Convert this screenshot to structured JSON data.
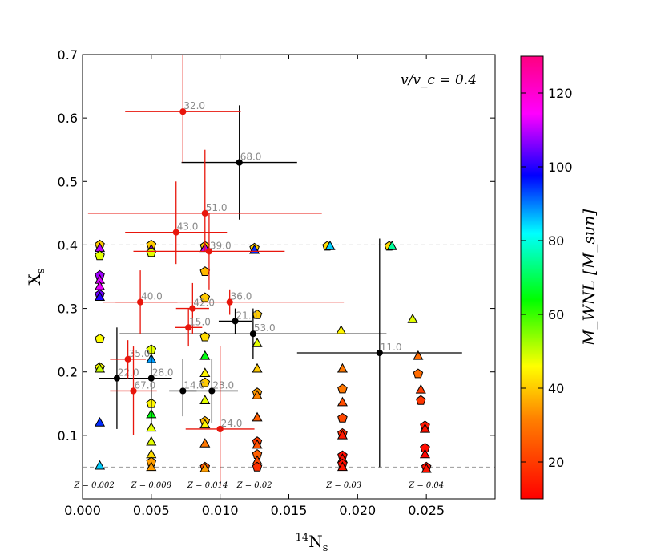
{
  "chart_data": {
    "type": "scatter",
    "title": "",
    "xlabel_base": "N",
    "xlabel_sup": "14",
    "xlabel_sub": "s",
    "ylabel_base": "X",
    "ylabel_sub": "s",
    "xlim": [
      0.0,
      0.03
    ],
    "ylim": [
      0.0,
      0.7
    ],
    "xticks": [
      "0.000",
      "0.005",
      "0.010",
      "0.015",
      "0.020",
      "0.025"
    ],
    "xtick_values": [
      0.0,
      0.005,
      0.01,
      0.015,
      0.02,
      0.025
    ],
    "yticks": [
      "0.1",
      "0.2",
      "0.3",
      "0.4",
      "0.5",
      "0.6",
      "0.7"
    ],
    "ytick_values": [
      0.1,
      0.2,
      0.3,
      0.4,
      0.5,
      0.6,
      0.7
    ],
    "annotation": "v/v_c = 0.4",
    "reference_lines_y": [
      0.05,
      0.4
    ],
    "colorbar": {
      "label": "M_WNL [M_sun]",
      "range": [
        10,
        130
      ],
      "ticks": [
        "20",
        "40",
        "60",
        "80",
        "100",
        "120"
      ],
      "tick_values": [
        20,
        40,
        60,
        80,
        100,
        120
      ]
    },
    "metallicity_labels": [
      {
        "text": "Z = 0.002",
        "x": 0.00085
      },
      {
        "text": "Z = 0.008",
        "x": 0.005
      },
      {
        "text": "Z = 0.014",
        "x": 0.0091
      },
      {
        "text": "Z = 0.02",
        "x": 0.0125
      },
      {
        "text": "Z = 0.03",
        "x": 0.019
      },
      {
        "text": "Z = 0.04",
        "x": 0.025
      }
    ],
    "observed_red": [
      {
        "label": "32.0",
        "x": 0.0073,
        "y": 0.61,
        "xerr": 0.0042,
        "yerr_lo": 0.08,
        "yerr_hi": 0.09
      },
      {
        "label": "51.0",
        "x": 0.0089,
        "y": 0.45,
        "xerr": 0.0085,
        "yerr_lo": 0.06,
        "yerr_hi": 0.1
      },
      {
        "label": "43.0",
        "x": 0.0068,
        "y": 0.42,
        "xerr": 0.0037,
        "yerr_lo": 0.05,
        "yerr_hi": 0.08
      },
      {
        "label": "39.0",
        "x": 0.0092,
        "y": 0.39,
        "xerr": 0.0055,
        "yerr_lo": 0.06,
        "yerr_hi": 0.06
      },
      {
        "label": "40.0",
        "x": 0.0042,
        "y": 0.31,
        "xerr": 0.0027,
        "yerr_lo": 0.05,
        "yerr_hi": 0.05
      },
      {
        "label": "36.0",
        "x": 0.0107,
        "y": 0.31,
        "xerr": 0.0083,
        "yerr_lo": 0.02,
        "yerr_hi": 0.02
      },
      {
        "label": "42.0",
        "x": 0.008,
        "y": 0.3,
        "xerr": 0.0012,
        "yerr_lo": 0.04,
        "yerr_hi": 0.04
      },
      {
        "label": "15.0",
        "x": 0.0077,
        "y": 0.27,
        "xerr": 0.001,
        "yerr_lo": 0.03,
        "yerr_hi": 0.03
      },
      {
        "label": "35.0",
        "x": 0.0033,
        "y": 0.22,
        "xerr": 0.0013,
        "yerr_lo": 0.03,
        "yerr_hi": 0.03
      },
      {
        "label": "67.0",
        "x": 0.0037,
        "y": 0.17,
        "xerr": 0.0017,
        "yerr_lo": 0.07,
        "yerr_hi": 0.07
      },
      {
        "label": "24.0",
        "x": 0.01,
        "y": 0.11,
        "xerr": 0.0025,
        "yerr_lo": 0.09,
        "yerr_hi": 0.13
      }
    ],
    "observed_black": [
      {
        "label": "68.0",
        "x": 0.0114,
        "y": 0.53,
        "xerr": 0.0042,
        "yerr_lo": 0.09,
        "yerr_hi": 0.09
      },
      {
        "label": "21.0",
        "x": 0.0111,
        "y": 0.28,
        "xerr": 0.0012,
        "yerr_lo": 0.02,
        "yerr_hi": 0.02
      },
      {
        "label": "53.0",
        "x": 0.0124,
        "y": 0.26,
        "xerr": 0.0097,
        "yerr_lo": 0.04,
        "yerr_hi": 0.04
      },
      {
        "label": "11.0",
        "x": 0.0216,
        "y": 0.23,
        "xerr": 0.006,
        "yerr_lo": 0.18,
        "yerr_hi": 0.18
      },
      {
        "label": "22.0",
        "x": 0.0025,
        "y": 0.19,
        "xerr": 0.0013,
        "yerr_lo": 0.08,
        "yerr_hi": 0.08
      },
      {
        "label": "28.0",
        "x": 0.005,
        "y": 0.19,
        "xerr": 0.0015,
        "yerr_lo": 0.07,
        "yerr_hi": 0.05
      },
      {
        "label": "14.0",
        "x": 0.0073,
        "y": 0.17,
        "xerr": 0.001,
        "yerr_lo": 0.04,
        "yerr_hi": 0.05
      },
      {
        "label": "23.0",
        "x": 0.0094,
        "y": 0.17,
        "xerr": 0.0019,
        "yerr_lo": 0.05,
        "yerr_hi": 0.05
      }
    ],
    "model_points": [
      {
        "x": 0.00125,
        "y": 0.4,
        "m": 40,
        "s": "pentagon"
      },
      {
        "x": 0.00125,
        "y": 0.395,
        "m": 110,
        "s": "triangle"
      },
      {
        "x": 0.00125,
        "y": 0.383,
        "m": 48,
        "s": "pentagon"
      },
      {
        "x": 0.00125,
        "y": 0.352,
        "m": 108,
        "s": "pentagon"
      },
      {
        "x": 0.00125,
        "y": 0.345,
        "m": 112,
        "s": "triangle"
      },
      {
        "x": 0.00125,
        "y": 0.335,
        "m": 113,
        "s": "triangle"
      },
      {
        "x": 0.00125,
        "y": 0.322,
        "m": 105,
        "s": "pentagon"
      },
      {
        "x": 0.00125,
        "y": 0.318,
        "m": 100,
        "s": "triangle"
      },
      {
        "x": 0.00125,
        "y": 0.252,
        "m": 46,
        "s": "pentagon"
      },
      {
        "x": 0.00125,
        "y": 0.207,
        "m": 46,
        "s": "pentagon"
      },
      {
        "x": 0.00125,
        "y": 0.205,
        "m": 50,
        "s": "triangle"
      },
      {
        "x": 0.00125,
        "y": 0.12,
        "m": 95,
        "s": "triangle"
      },
      {
        "x": 0.00125,
        "y": 0.052,
        "m": 85,
        "s": "triangle"
      },
      {
        "x": 0.005,
        "y": 0.4,
        "m": 40,
        "s": "pentagon"
      },
      {
        "x": 0.005,
        "y": 0.393,
        "m": 110,
        "s": "triangle"
      },
      {
        "x": 0.005,
        "y": 0.388,
        "m": 48,
        "s": "pentagon"
      },
      {
        "x": 0.005,
        "y": 0.235,
        "m": 48,
        "s": "pentagon"
      },
      {
        "x": 0.005,
        "y": 0.22,
        "m": 88,
        "s": "triangle"
      },
      {
        "x": 0.005,
        "y": 0.15,
        "m": 45,
        "s": "pentagon"
      },
      {
        "x": 0.005,
        "y": 0.133,
        "m": 65,
        "s": "triangle"
      },
      {
        "x": 0.005,
        "y": 0.112,
        "m": 48,
        "s": "triangle"
      },
      {
        "x": 0.005,
        "y": 0.09,
        "m": 48,
        "s": "triangle"
      },
      {
        "x": 0.005,
        "y": 0.07,
        "m": 42,
        "s": "triangle"
      },
      {
        "x": 0.005,
        "y": 0.058,
        "m": 35,
        "s": "pentagon"
      },
      {
        "x": 0.005,
        "y": 0.05,
        "m": 35,
        "s": "triangle"
      },
      {
        "x": 0.0089,
        "y": 0.398,
        "m": 40,
        "s": "pentagon"
      },
      {
        "x": 0.0089,
        "y": 0.395,
        "m": 110,
        "s": "triangle"
      },
      {
        "x": 0.0089,
        "y": 0.358,
        "m": 38,
        "s": "pentagon"
      },
      {
        "x": 0.0089,
        "y": 0.317,
        "m": 40,
        "s": "pentagon"
      },
      {
        "x": 0.0089,
        "y": 0.255,
        "m": 42,
        "s": "pentagon"
      },
      {
        "x": 0.0089,
        "y": 0.225,
        "m": 65,
        "s": "triangle"
      },
      {
        "x": 0.0089,
        "y": 0.198,
        "m": 45,
        "s": "triangle"
      },
      {
        "x": 0.0089,
        "y": 0.183,
        "m": 40,
        "s": "pentagon"
      },
      {
        "x": 0.0089,
        "y": 0.155,
        "m": 48,
        "s": "triangle"
      },
      {
        "x": 0.0089,
        "y": 0.122,
        "m": 38,
        "s": "pentagon"
      },
      {
        "x": 0.0089,
        "y": 0.117,
        "m": 45,
        "s": "triangle"
      },
      {
        "x": 0.0089,
        "y": 0.087,
        "m": 30,
        "s": "triangle"
      },
      {
        "x": 0.0089,
        "y": 0.05,
        "m": 24,
        "s": "pentagon"
      },
      {
        "x": 0.0089,
        "y": 0.048,
        "m": 35,
        "s": "triangle"
      },
      {
        "x": 0.0125,
        "y": 0.395,
        "m": 40,
        "s": "pentagon"
      },
      {
        "x": 0.0125,
        "y": 0.392,
        "m": 95,
        "s": "triangle"
      },
      {
        "x": 0.0127,
        "y": 0.29,
        "m": 40,
        "s": "pentagon"
      },
      {
        "x": 0.0127,
        "y": 0.245,
        "m": 48,
        "s": "triangle"
      },
      {
        "x": 0.0127,
        "y": 0.205,
        "m": 40,
        "s": "triangle"
      },
      {
        "x": 0.0127,
        "y": 0.167,
        "m": 35,
        "s": "pentagon"
      },
      {
        "x": 0.0127,
        "y": 0.163,
        "m": 32,
        "s": "triangle"
      },
      {
        "x": 0.0127,
        "y": 0.128,
        "m": 26,
        "s": "triangle"
      },
      {
        "x": 0.0127,
        "y": 0.09,
        "m": 20,
        "s": "pentagon"
      },
      {
        "x": 0.0127,
        "y": 0.085,
        "m": 24,
        "s": "triangle"
      },
      {
        "x": 0.0127,
        "y": 0.07,
        "m": 26,
        "s": "pentagon"
      },
      {
        "x": 0.0127,
        "y": 0.06,
        "m": 22,
        "s": "triangle"
      },
      {
        "x": 0.0127,
        "y": 0.05,
        "m": 18,
        "s": "pentagon"
      },
      {
        "x": 0.0178,
        "y": 0.398,
        "m": 42,
        "s": "pentagon"
      },
      {
        "x": 0.018,
        "y": 0.398,
        "m": 85,
        "s": "triangle"
      },
      {
        "x": 0.0188,
        "y": 0.265,
        "m": 45,
        "s": "triangle"
      },
      {
        "x": 0.0189,
        "y": 0.205,
        "m": 30,
        "s": "triangle"
      },
      {
        "x": 0.0189,
        "y": 0.173,
        "m": 30,
        "s": "pentagon"
      },
      {
        "x": 0.0189,
        "y": 0.152,
        "m": 23,
        "s": "triangle"
      },
      {
        "x": 0.0189,
        "y": 0.127,
        "m": 22,
        "s": "pentagon"
      },
      {
        "x": 0.0189,
        "y": 0.103,
        "m": 17,
        "s": "pentagon"
      },
      {
        "x": 0.0189,
        "y": 0.1,
        "m": 14,
        "s": "triangle"
      },
      {
        "x": 0.0189,
        "y": 0.068,
        "m": 12,
        "s": "pentagon"
      },
      {
        "x": 0.0189,
        "y": 0.063,
        "m": 13,
        "s": "triangle"
      },
      {
        "x": 0.0189,
        "y": 0.055,
        "m": 12,
        "s": "pentagon"
      },
      {
        "x": 0.0189,
        "y": 0.05,
        "m": 13,
        "s": "triangle"
      },
      {
        "x": 0.0223,
        "y": 0.398,
        "m": 42,
        "s": "pentagon"
      },
      {
        "x": 0.0225,
        "y": 0.398,
        "m": 75,
        "s": "triangle"
      },
      {
        "x": 0.024,
        "y": 0.283,
        "m": 48,
        "s": "triangle"
      },
      {
        "x": 0.0244,
        "y": 0.225,
        "m": 28,
        "s": "triangle"
      },
      {
        "x": 0.0244,
        "y": 0.197,
        "m": 28,
        "s": "pentagon"
      },
      {
        "x": 0.0246,
        "y": 0.172,
        "m": 20,
        "s": "triangle"
      },
      {
        "x": 0.0246,
        "y": 0.155,
        "m": 19,
        "s": "pentagon"
      },
      {
        "x": 0.0249,
        "y": 0.115,
        "m": 14,
        "s": "pentagon"
      },
      {
        "x": 0.0249,
        "y": 0.11,
        "m": 13,
        "s": "triangle"
      },
      {
        "x": 0.0249,
        "y": 0.08,
        "m": 12,
        "s": "pentagon"
      },
      {
        "x": 0.0249,
        "y": 0.07,
        "m": 11,
        "s": "triangle"
      },
      {
        "x": 0.025,
        "y": 0.05,
        "m": 12,
        "s": "pentagon"
      },
      {
        "x": 0.025,
        "y": 0.047,
        "m": 13,
        "s": "triangle"
      }
    ]
  }
}
